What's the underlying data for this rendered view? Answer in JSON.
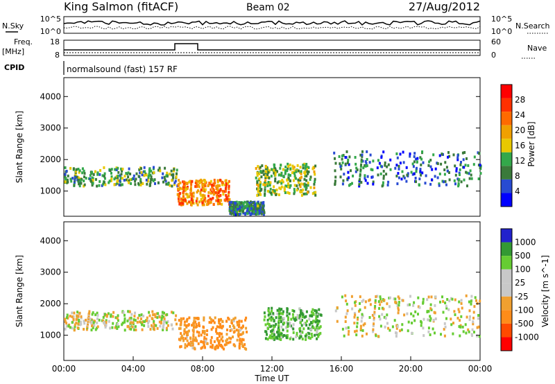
{
  "header": {
    "station": "King Salmon (fitACF)",
    "beam": "Beam 02",
    "date": "27/Aug/2012"
  },
  "status": {
    "nsky_label": "N.Sky",
    "nsearch_label": "N.Search",
    "nave_label": "Nave",
    "freq_label_1": "Freq.",
    "freq_label_2": "[MHz]",
    "cpid_label": "CPID",
    "cpid_value": "normalsound (fast) 157 RF",
    "noise_left_ticks": [
      "10^5",
      "10^0"
    ],
    "noise_right_ticks": [
      "10^5",
      "10^0"
    ],
    "freq_left_ticks": [
      "18",
      "8"
    ],
    "nave_right_ticks": [
      "60",
      "0"
    ]
  },
  "colors": {
    "power_scale": [
      "#0000ff",
      "#284bd2",
      "#3a7a3a",
      "#33a84a",
      "#e8c800",
      "#f0a000",
      "#ff6a00",
      "#ff3000",
      "#ff0000"
    ],
    "velocity_scale": [
      "#ff0000",
      "#ff4a00",
      "#ff8c1a",
      "#f0a030",
      "#c8c8c8",
      "#c8c8c8",
      "#66cc33",
      "#339933",
      "#2222cc"
    ]
  },
  "chart_data": [
    {
      "type": "heatmap",
      "title": "Power",
      "xlabel": "",
      "ylabel": "Slant Range [km]",
      "ylim": [
        200,
        4600
      ],
      "yticks": [
        "1000",
        "2000",
        "3000",
        "4000"
      ],
      "colorbar": {
        "label": "Power [dB]",
        "ticks": [
          "4",
          "8",
          "12",
          "16",
          "20",
          "24",
          "28"
        ]
      },
      "regions": [
        {
          "t_start": 0.0,
          "t_end": 6.5,
          "range_lo": 1200,
          "range_hi": 1800,
          "power_db": 12
        },
        {
          "t_start": 6.5,
          "t_end": 9.5,
          "range_lo": 600,
          "range_hi": 1400,
          "power_db": 22
        },
        {
          "t_start": 9.5,
          "t_end": 11.5,
          "range_lo": 300,
          "range_hi": 700,
          "power_db": 10
        },
        {
          "t_start": 11.0,
          "t_end": 14.5,
          "range_lo": 900,
          "range_hi": 1900,
          "power_db": 14
        },
        {
          "t_start": 15.5,
          "t_end": 24.0,
          "range_lo": 1200,
          "range_hi": 2300,
          "power_db": 9
        }
      ]
    },
    {
      "type": "heatmap",
      "title": "Velocity",
      "xlabel": "Time UT",
      "ylabel": "Slant Range [km]",
      "ylim": [
        200,
        4600
      ],
      "yticks": [
        "1000",
        "2000",
        "3000",
        "4000"
      ],
      "xticks": [
        "00:00",
        "04:00",
        "08:00",
        "12:00",
        "16:00",
        "20:00",
        "00:00"
      ],
      "colorbar": {
        "label": "Velocity [m s^-1]",
        "ticks": [
          "1000",
          "500",
          "100",
          "25",
          "-25",
          "-100",
          "-500",
          "-1000"
        ]
      },
      "regions": [
        {
          "t_start": 0.0,
          "t_end": 6.5,
          "range_lo": 1200,
          "range_hi": 1800,
          "velocity": 0
        },
        {
          "t_start": 6.5,
          "t_end": 10.5,
          "range_lo": 600,
          "range_hi": 1600,
          "velocity": -120
        },
        {
          "t_start": 11.5,
          "t_end": 14.8,
          "range_lo": 900,
          "range_hi": 1900,
          "velocity": 100
        },
        {
          "t_start": 15.5,
          "t_end": 24.0,
          "range_lo": 1000,
          "range_hi": 2300,
          "velocity": 0
        }
      ]
    }
  ]
}
